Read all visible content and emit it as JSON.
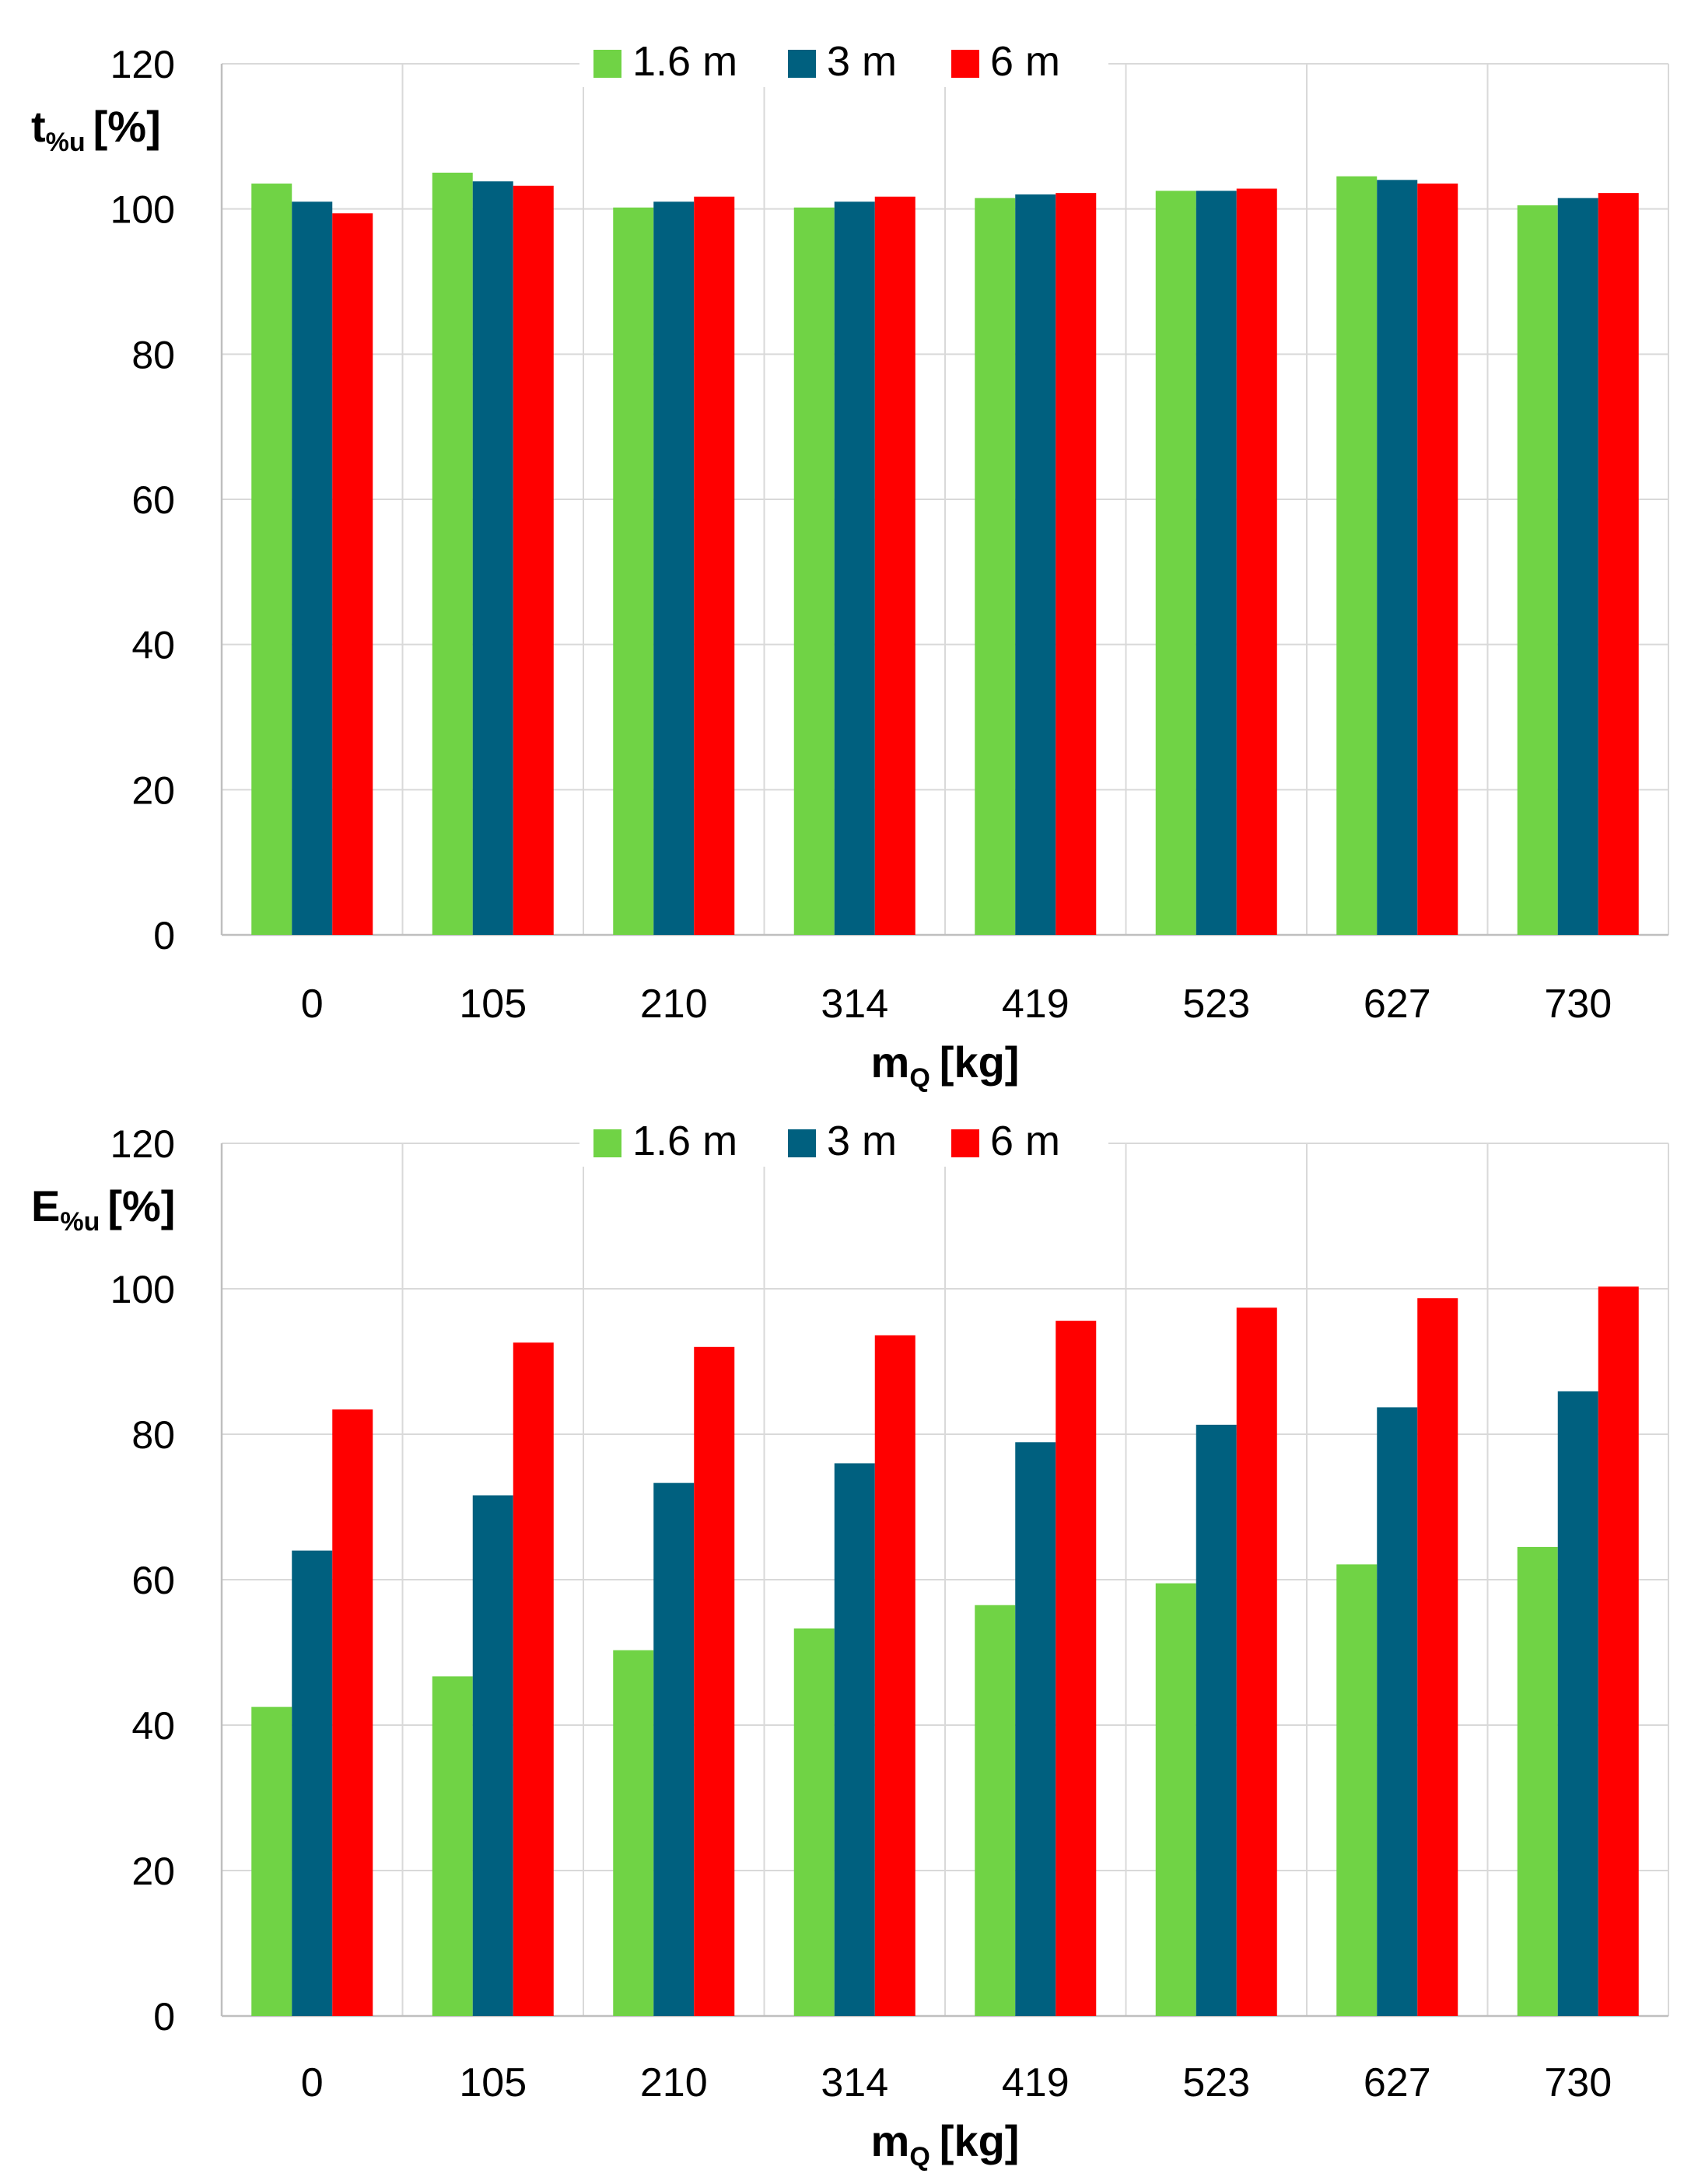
{
  "colors": {
    "s1": "#70d345",
    "s2": "#00607f",
    "s3": "#ff0000"
  },
  "chart_data": [
    {
      "type": "bar",
      "ylabel": {
        "main": "t",
        "sub": "%u",
        "unit": "[%]"
      },
      "xlabel": {
        "main": "m",
        "sub": "Q",
        "unit": "[kg]"
      },
      "ylim": [
        0,
        120
      ],
      "yticks": [
        0,
        20,
        40,
        60,
        80,
        100,
        120
      ],
      "categories": [
        "0",
        "105",
        "210",
        "314",
        "419",
        "523",
        "627",
        "730"
      ],
      "legend_position": "top-center",
      "series": [
        {
          "name": "1.6 m",
          "color": "#70d345",
          "values": [
            103.5,
            105,
            100.2,
            100.2,
            101.5,
            102.5,
            104.5,
            100.5
          ]
        },
        {
          "name": "3 m",
          "color": "#00607f",
          "values": [
            101,
            103.8,
            101,
            101,
            102,
            102.5,
            104,
            101.5
          ]
        },
        {
          "name": "6 m",
          "color": "#ff0000",
          "values": [
            99.4,
            103.2,
            101.7,
            101.7,
            102.2,
            102.8,
            103.5,
            102.2
          ]
        }
      ]
    },
    {
      "type": "bar",
      "ylabel": {
        "main": "E",
        "sub": "%u",
        "unit": "[%]"
      },
      "xlabel": {
        "main": "m",
        "sub": "Q",
        "unit": "[kg]"
      },
      "ylim": [
        0,
        120
      ],
      "yticks": [
        0,
        20,
        40,
        60,
        80,
        100,
        120
      ],
      "categories": [
        "0",
        "105",
        "210",
        "314",
        "419",
        "523",
        "627",
        "730"
      ],
      "legend_position": "top-center",
      "series": [
        {
          "name": "1.6 m",
          "color": "#70d345",
          "values": [
            42.5,
            46.7,
            50.3,
            53.3,
            56.5,
            59.5,
            62.1,
            64.5
          ]
        },
        {
          "name": "3 m",
          "color": "#00607f",
          "values": [
            64,
            71.6,
            73.3,
            76,
            78.9,
            81.3,
            83.7,
            85.9
          ]
        },
        {
          "name": "6 m",
          "color": "#ff0000",
          "values": [
            83.4,
            92.6,
            92,
            93.6,
            95.6,
            97.4,
            98.7,
            100.3
          ]
        }
      ]
    }
  ]
}
